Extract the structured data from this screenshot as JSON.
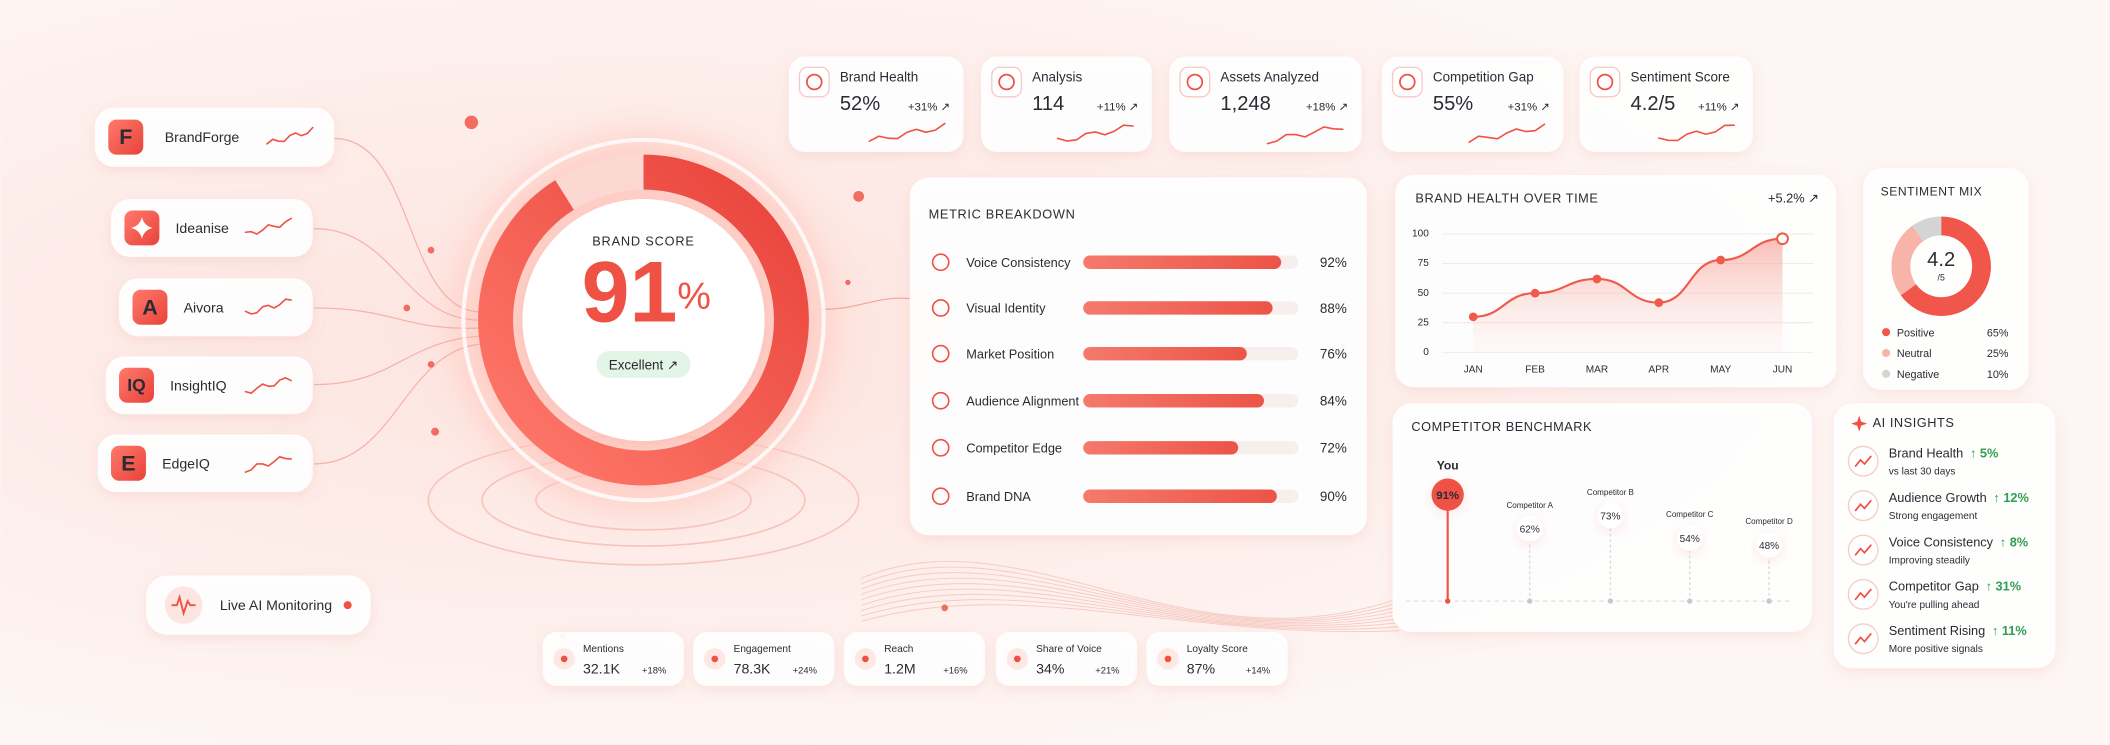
{
  "brands": [
    {
      "initial": "F",
      "name": "BrandForge"
    },
    {
      "name": "Ideanise"
    },
    {
      "initial": "A",
      "name": "Aivora"
    },
    {
      "initial": "IQ",
      "name": "InsightIQ"
    },
    {
      "initial": "E",
      "name": "EdgeIQ"
    }
  ],
  "live_monitor": "Live AI Monitoring",
  "brand_score": {
    "title": "BRAND SCORE",
    "value": 91,
    "unit": "%",
    "rating": "Excellent ↗"
  },
  "kpis": [
    {
      "label": "Brand Health",
      "value": "52%",
      "change": "+31% ↗"
    },
    {
      "label": "Analysis",
      "value": "114",
      "change": "+11% ↗"
    },
    {
      "label": "Assets Analyzed",
      "value": "1,248",
      "change": "+18% ↗"
    },
    {
      "label": "Competition Gap",
      "value": "55%",
      "change": "+31% ↗"
    },
    {
      "label": "Sentiment Score",
      "value": "4.2/5",
      "change": "+11% ↗"
    }
  ],
  "metric_breakdown": {
    "title": "METRIC BREAKDOWN",
    "items": [
      {
        "label": "Voice Consistency",
        "value": 92,
        "value_label": "92%"
      },
      {
        "label": "Visual Identity",
        "value": 88,
        "value_label": "88%"
      },
      {
        "label": "Market Position",
        "value": 76,
        "value_label": "76%"
      },
      {
        "label": "Audience Alignment",
        "value": 84,
        "value_label": "84%"
      },
      {
        "label": "Competitor Edge",
        "value": 72,
        "value_label": "72%"
      },
      {
        "label": "Brand DNA",
        "value": 90,
        "value_label": "90%"
      }
    ]
  },
  "brand_health_chart": {
    "type": "line",
    "title": "BRAND HEALTH OVER TIME",
    "change": "+5.2% ↗",
    "categories": [
      "JAN",
      "FEB",
      "MAR",
      "APR",
      "MAY",
      "JUN"
    ],
    "values": [
      30,
      50,
      62,
      42,
      78,
      96
    ],
    "color": "#ef5a4c",
    "ylim": [
      0,
      100
    ],
    "yticks": [
      0,
      25,
      50,
      75,
      100
    ],
    "grid": true
  },
  "sentiment_mix": {
    "type": "pie",
    "title": "SENTIMENT MIX",
    "score": "4.2",
    "scale": "/5",
    "segments": [
      {
        "name": "Positive",
        "value": 65,
        "value_label": "65%",
        "color": "#f0564a"
      },
      {
        "name": "Neutral",
        "value": 25,
        "value_label": "25%",
        "color": "#f8b4a8"
      },
      {
        "name": "Negative",
        "value": 10,
        "value_label": "10%",
        "color": "#d4d4d4"
      }
    ]
  },
  "competitor_benchmark": {
    "type": "lollipop",
    "title": "COMPETITOR BENCHMARK",
    "items": [
      {
        "name": "You",
        "value": 91,
        "value_label": "91%"
      },
      {
        "name": "Competitor A",
        "value": 62,
        "value_label": "62%"
      },
      {
        "name": "Competitor B",
        "value": 73,
        "value_label": "73%"
      },
      {
        "name": "Competitor C",
        "value": 54,
        "value_label": "54%"
      },
      {
        "name": "Competitor D",
        "value": 48,
        "value_label": "48%"
      }
    ]
  },
  "ai_insights": {
    "title": "AI INSIGHTS",
    "items": [
      {
        "title": "Brand Health",
        "change": "↑ 5%",
        "note": "vs last 30 days"
      },
      {
        "title": "Audience Growth",
        "change": "↑ 12%",
        "note": "Strong engagement"
      },
      {
        "title": "Voice Consistency",
        "change": "↑ 8%",
        "note": "Improving steadily"
      },
      {
        "title": "Competitor Gap",
        "change": "↑ 31%",
        "note": "You're pulling ahead"
      },
      {
        "title": "Sentiment Rising",
        "change": "↑ 11%",
        "note": "More positive signals"
      }
    ]
  },
  "bottom_metrics": [
    {
      "label": "Mentions",
      "value": "32.1K",
      "change": "+18%"
    },
    {
      "label": "Engagement",
      "value": "78.3K",
      "change": "+24%"
    },
    {
      "label": "Reach",
      "value": "1.2M",
      "change": "+16%"
    },
    {
      "label": "Share of Voice",
      "value": "34%",
      "change": "+21%"
    },
    {
      "label": "Loyalty Score",
      "value": "87%",
      "change": "+14%"
    }
  ]
}
